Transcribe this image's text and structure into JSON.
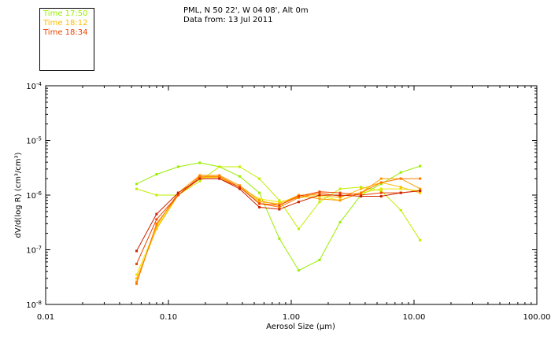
{
  "header": {
    "location": "PML, N 50 22', W 04 08', Alt 0m",
    "date": "Data from: 13 Jul 2011"
  },
  "chart_data": {
    "type": "line",
    "xlabel": "Aerosol Size (µm)",
    "ylabel": "dV/d(log R) (cm³/cm³)",
    "xscale": "log",
    "yscale": "log",
    "xlim": [
      0.01,
      100
    ],
    "ylim": [
      1e-08,
      0.0001
    ],
    "x_ticks": [
      {
        "value": 0.01,
        "label": "0.01"
      },
      {
        "value": 0.1,
        "label": "0.10"
      },
      {
        "value": 1,
        "label": "1.00"
      },
      {
        "value": 10,
        "label": "10.00"
      },
      {
        "value": 100,
        "label": "100.00"
      }
    ],
    "y_ticks": [
      {
        "value": 1e-08,
        "base": "10",
        "exp": "-8"
      },
      {
        "value": 1e-07,
        "base": "10",
        "exp": "-7"
      },
      {
        "value": 1e-06,
        "base": "10",
        "exp": "-6"
      },
      {
        "value": 1e-05,
        "base": "10",
        "exp": "-5"
      },
      {
        "value": 0.0001,
        "base": "10",
        "exp": "-4"
      }
    ],
    "legend_position": "top-left, outside plot",
    "x": [
      0.055,
      0.08,
      0.12,
      0.18,
      0.26,
      0.38,
      0.55,
      0.8,
      1.15,
      1.7,
      2.5,
      3.7,
      5.4,
      7.8,
      11.2
    ],
    "series": [
      {
        "name": "Time 17:50",
        "color": "#99ee00",
        "values": [
          1.6e-06,
          2.4e-06,
          3.3e-06,
          3.9e-06,
          3.3e-06,
          2.2e-06,
          1.1e-06,
          1.6e-07,
          4.2e-08,
          6.5e-08,
          3.2e-07,
          1e-06,
          1.6e-06,
          2.6e-06,
          3.4e-06
        ]
      },
      {
        "name": "",
        "color": "#c0ee00",
        "values": [
          1.3e-06,
          1e-06,
          1e-06,
          1.8e-06,
          3.3e-06,
          3.3e-06,
          2e-06,
          8e-07,
          2.4e-07,
          7.5e-07,
          1.3e-06,
          1.4e-06,
          1.2e-06,
          5.3e-07,
          1.5e-07
        ]
      },
      {
        "name": "",
        "color": "#e8e800",
        "values": [
          3.5e-08,
          2.6e-07,
          1e-06,
          2.1e-06,
          2.2e-06,
          1.4e-06,
          8.5e-07,
          7.5e-07,
          9e-07,
          9.5e-07,
          8e-07,
          1.1e-06,
          1.3e-06,
          1.3e-06,
          1.2e-06
        ]
      },
      {
        "name": "Time 18:12",
        "color": "#ffbb00",
        "values": [
          3e-08,
          2.4e-07,
          1e-06,
          2.1e-06,
          2.1e-06,
          1.4e-06,
          7.5e-07,
          7e-07,
          1e-06,
          1e-06,
          9e-07,
          1.3e-06,
          1.7e-06,
          1.4e-06,
          1.1e-06
        ]
      },
      {
        "name": "",
        "color": "#ff9900",
        "values": [
          2.6e-08,
          2.8e-07,
          1.1e-06,
          2.3e-06,
          2.3e-06,
          1.5e-06,
          8e-07,
          6.5e-07,
          1e-06,
          8.5e-07,
          8e-07,
          1.1e-06,
          2e-06,
          2e-06,
          1.3e-06
        ]
      },
      {
        "name": "",
        "color": "#ff7700",
        "values": [
          2.4e-08,
          3e-07,
          1e-06,
          2.2e-06,
          2.2e-06,
          1.4e-06,
          7e-07,
          6e-07,
          9e-07,
          1.1e-06,
          9.5e-07,
          1.1e-06,
          1.7e-06,
          2e-06,
          2e-06
        ]
      },
      {
        "name": "Time 18:34",
        "color": "#ee4400",
        "values": [
          5.5e-08,
          3.6e-07,
          1e-06,
          2e-06,
          2e-06,
          1.4e-06,
          7e-07,
          6.5e-07,
          9.5e-07,
          1.15e-06,
          1.1e-06,
          1e-06,
          1.1e-06,
          1.1e-06,
          1.2e-06
        ]
      },
      {
        "name": "",
        "color": "#cc2200",
        "values": [
          9.5e-08,
          4.5e-07,
          1.1e-06,
          2e-06,
          2e-06,
          1.3e-06,
          6e-07,
          5.5e-07,
          7.5e-07,
          1e-06,
          1e-06,
          9.5e-07,
          9.5e-07,
          1.1e-06,
          1.2e-06
        ]
      }
    ]
  }
}
